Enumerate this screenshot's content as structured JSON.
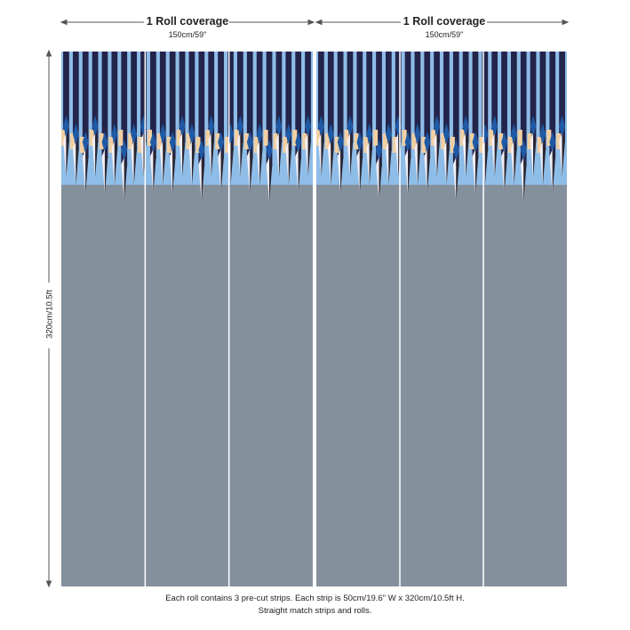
{
  "roll_labels": [
    {
      "title": "1 Roll coverage",
      "width": "150cm/59\""
    },
    {
      "title": "1 Roll coverage",
      "width": "150cm/59\""
    }
  ],
  "height_label": "320cm/10.5ft",
  "caption_line1": "Each roll contains 3 pre-cut strips.  Each strip is 50cm/19.6\" W x 320cm/10.5ft H.",
  "caption_line2": "Straight match strips and rolls.",
  "colors": {
    "background": "#84919d",
    "light_blue": "#8ebde8",
    "mid_blue": "#1f5aa6",
    "navy": "#23244a",
    "peach": "#f0cfa3",
    "pale": "#f2eef3",
    "dark": "#2a2631"
  }
}
